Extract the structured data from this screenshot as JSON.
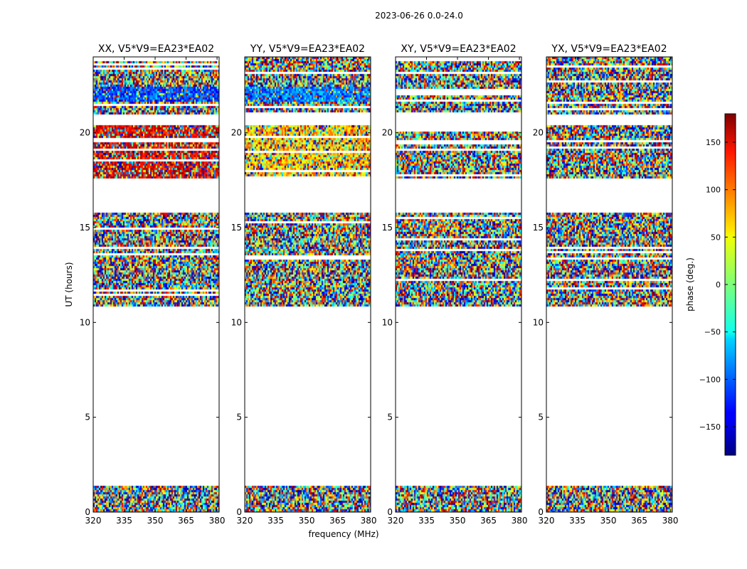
{
  "suptitle": "2023-06-26 0.0-24.0",
  "chart_data": {
    "type": "heatmap",
    "xlabel": "frequency (MHz)",
    "ylabel": "UT (hours)",
    "xlim": [
      320,
      381
    ],
    "ylim": [
      0,
      24
    ],
    "x_ticks": [
      "320",
      "335",
      "350",
      "365",
      "380"
    ],
    "x_tick_values": [
      320,
      335,
      350,
      365,
      380
    ],
    "y_ticks": [
      "0",
      "5",
      "10",
      "15",
      "20"
    ],
    "y_tick_values": [
      0,
      5,
      10,
      15,
      20
    ],
    "colormap": "jet",
    "colorbar": {
      "label": "phase (deg.)",
      "range": [
        -180,
        180
      ],
      "ticks": [
        "150",
        "100",
        "50",
        "0",
        "−50",
        "−100",
        "−150"
      ],
      "tick_values": [
        150,
        100,
        50,
        0,
        -50,
        -100,
        -150
      ]
    },
    "flagged_ut_ranges": [
      [
        1.4,
        10.85
      ],
      [
        15.8,
        17.6
      ],
      [
        20.45,
        21.0
      ]
    ],
    "panels": [
      {
        "title": "XX, V5*V9=EA23*EA02",
        "pattern": "coherent-red"
      },
      {
        "title": "YY, V5*V9=EA23*EA02",
        "pattern": "coherent-yellow"
      },
      {
        "title": "XY, V5*V9=EA23*EA02",
        "pattern": "noise"
      },
      {
        "title": "YX, V5*V9=EA23*EA02",
        "pattern": "noise"
      }
    ]
  }
}
